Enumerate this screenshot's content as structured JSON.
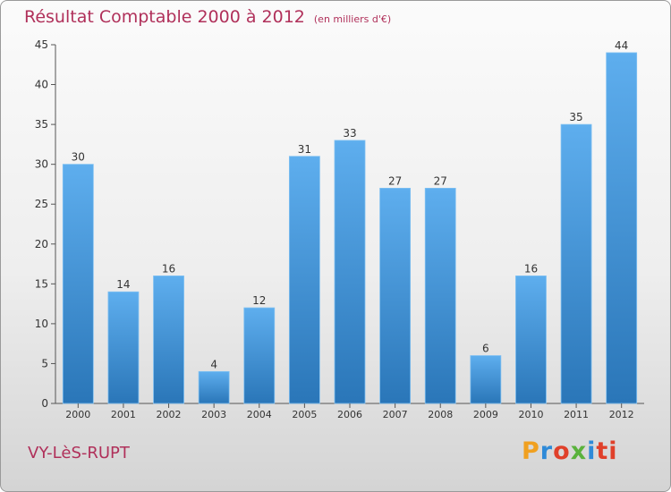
{
  "chart_data": {
    "type": "bar",
    "title": "Résultat Comptable 2000 à 2012",
    "subtitle": "(en milliers d'€)",
    "categories": [
      "2000",
      "2001",
      "2002",
      "2003",
      "2004",
      "2005",
      "2006",
      "2007",
      "2008",
      "2009",
      "2010",
      "2011",
      "2012"
    ],
    "values": [
      30,
      14,
      16,
      4,
      12,
      31,
      33,
      27,
      27,
      6,
      16,
      35,
      44
    ],
    "ylim": [
      0,
      45
    ],
    "yticks": [
      0,
      5,
      10,
      15,
      20,
      25,
      30,
      35,
      40,
      45
    ],
    "grid": false,
    "bar_color": "#3d8fd6"
  },
  "footer": {
    "commune": "VY-LèS-RUPT",
    "brand": "Proxiti"
  },
  "colors": {
    "title": "#b0305a",
    "bar_top": "#5eaeee",
    "bar_bottom": "#2a76b8"
  }
}
